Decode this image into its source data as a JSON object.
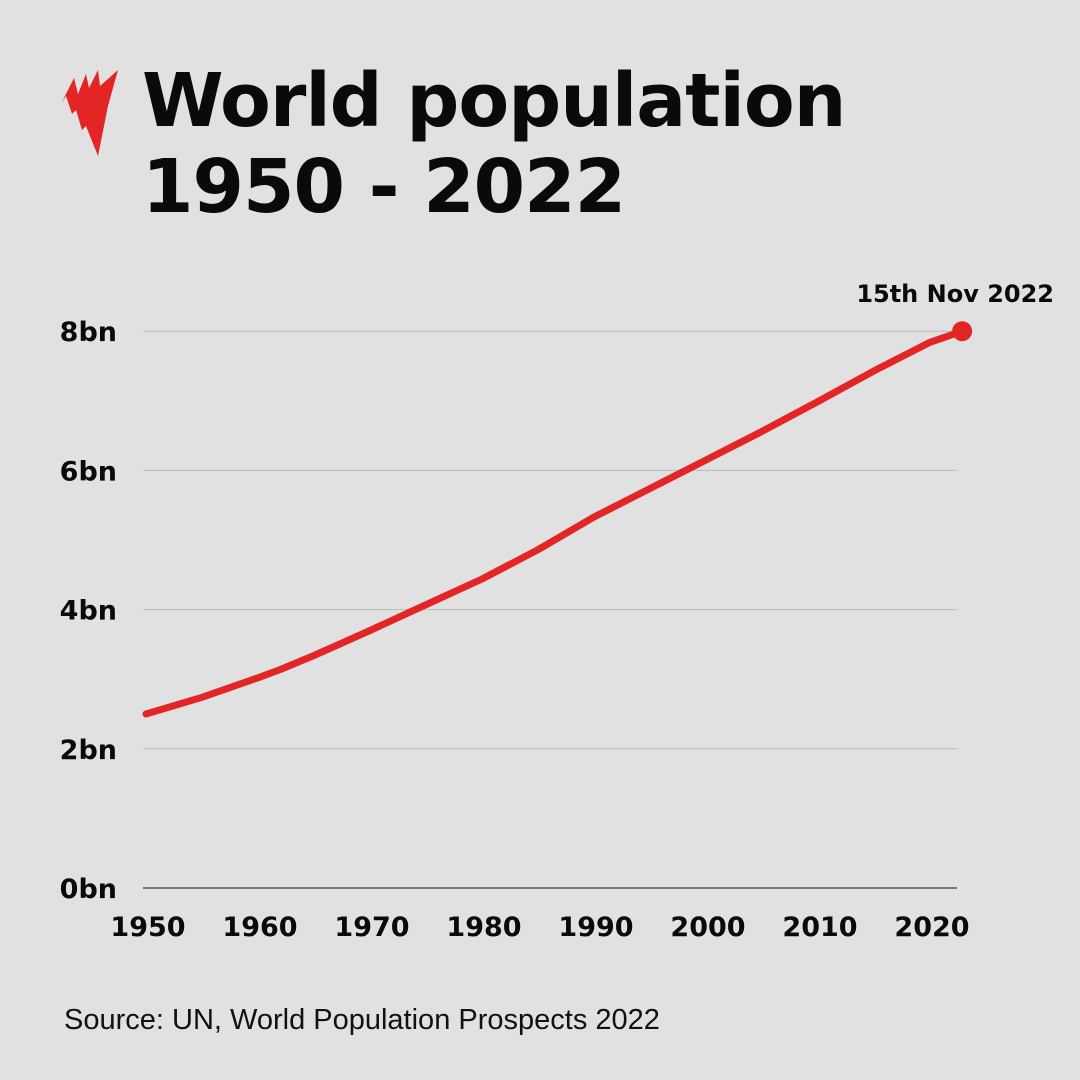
{
  "title": {
    "line1": "World population",
    "line2": "1950 - 2022"
  },
  "logo": {
    "name": "sbs-logo-icon",
    "color": "#e32526"
  },
  "source": "Source: UN, World Population Prospects 2022",
  "chart_data": {
    "type": "line",
    "title": "World population 1950 - 2022",
    "xlabel": "",
    "ylabel": "",
    "xlim": [
      1950,
      2022.9
    ],
    "ylim": [
      0,
      8
    ],
    "grid": true,
    "x_ticks": [
      1950,
      1960,
      1970,
      1980,
      1990,
      2000,
      2010,
      2020
    ],
    "x_tick_labels": [
      "1950",
      "1960",
      "1970",
      "1980",
      "1990",
      "2000",
      "2010",
      "2020"
    ],
    "y_ticks": [
      0,
      2,
      4,
      6,
      8
    ],
    "y_tick_labels": [
      "0bn",
      "2bn",
      "4bn",
      "6bn",
      "8bn"
    ],
    "series": [
      {
        "color": "#e32526",
        "x": [
          1950,
          1955,
          1960,
          1962,
          1965,
          1970,
          1975,
          1980,
          1985,
          1990,
          1995,
          2000,
          2005,
          2010,
          2015,
          2020,
          2022.87
        ],
        "values": [
          2.5,
          2.74,
          3.02,
          3.14,
          3.34,
          3.7,
          4.07,
          4.44,
          4.86,
          5.33,
          5.74,
          6.15,
          6.56,
          6.99,
          7.43,
          7.84,
          8.0
        ]
      }
    ],
    "annotations": [
      {
        "label": "15th Nov 2022",
        "x": 2022.87,
        "y": 8.0
      }
    ]
  }
}
